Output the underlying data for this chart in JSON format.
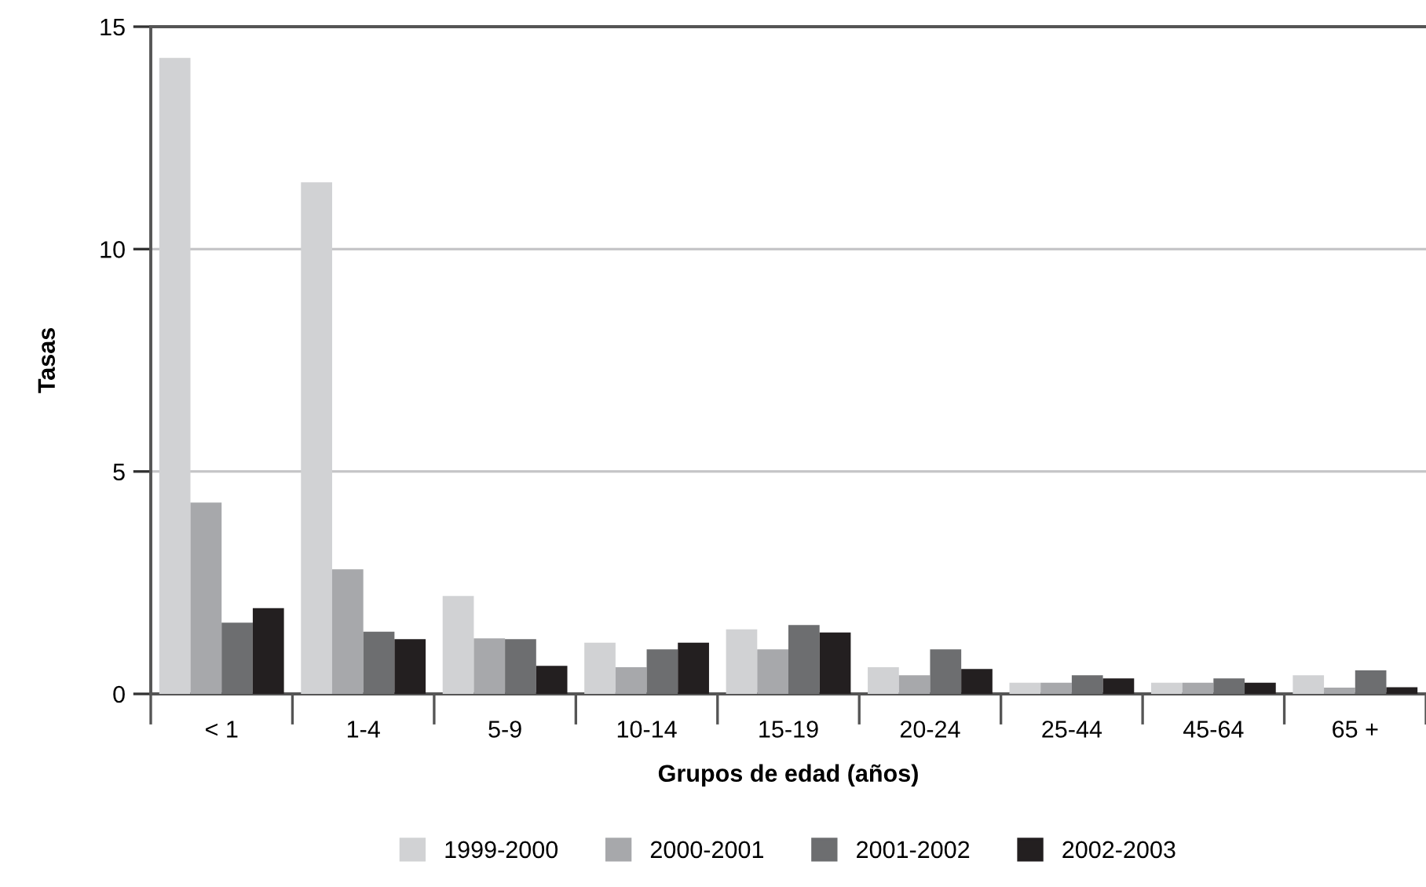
{
  "chart_data": {
    "type": "bar",
    "xlabel": "Grupos de edad (años)",
    "ylabel": "Tasas",
    "categories": [
      "< 1",
      "1-4",
      "5-9",
      "10-14",
      "15-19",
      "20-24",
      "25-44",
      "45-64",
      "65 +"
    ],
    "series": [
      {
        "name": "1999-2000",
        "color": "#d1d2d4",
        "values": [
          14.3,
          11.5,
          2.2,
          1.15,
          1.45,
          0.6,
          0.25,
          0.25,
          0.42
        ]
      },
      {
        "name": "2000-2001",
        "color": "#a7a8ab",
        "values": [
          4.3,
          2.8,
          1.25,
          0.6,
          1.0,
          0.42,
          0.25,
          0.25,
          0.14
        ]
      },
      {
        "name": "2001-2002",
        "color": "#6d6e70",
        "values": [
          1.6,
          1.4,
          1.23,
          1.0,
          1.55,
          1.0,
          0.42,
          0.35,
          0.53
        ]
      },
      {
        "name": "2002-2003",
        "color": "#231f20",
        "values": [
          1.93,
          1.23,
          0.63,
          1.15,
          1.38,
          0.56,
          0.35,
          0.25,
          0.15
        ]
      }
    ],
    "ylim": [
      0,
      15
    ],
    "yticks": [
      0,
      5,
      10,
      15
    ],
    "grid": "y",
    "legend": "bottom"
  }
}
